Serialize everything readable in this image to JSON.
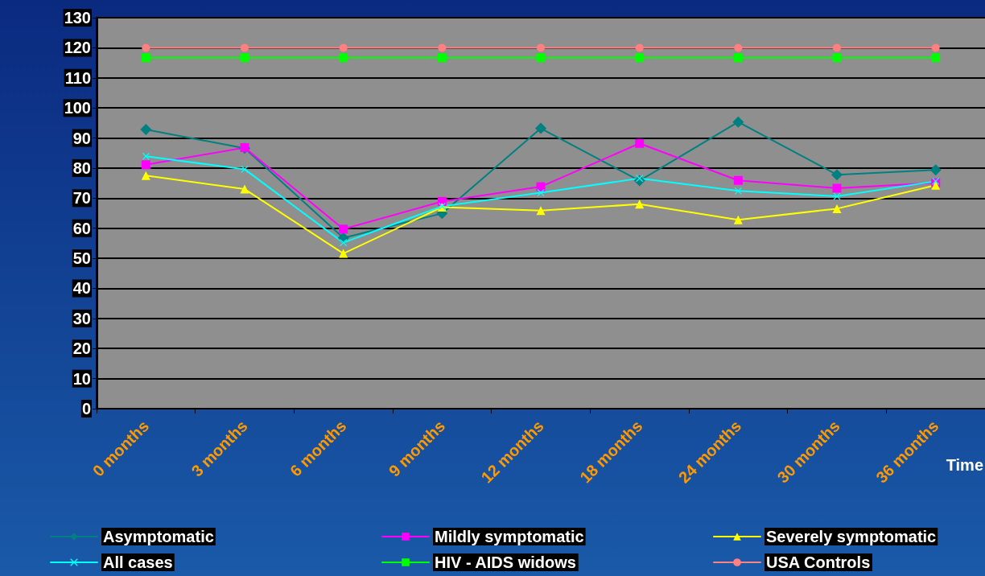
{
  "chart_data": {
    "type": "line",
    "xlabel": "Time",
    "categories": [
      "0 months",
      "3 months",
      "6 months",
      "9 months",
      "12 months",
      "18 months",
      "24 months",
      "30 months",
      "36 months"
    ],
    "series": [
      {
        "name": "Asymptomatic",
        "color": "#008080",
        "marker": "diamond",
        "values": [
          92.8,
          86.6,
          56.8,
          64.9,
          93.2,
          75.8,
          95.3,
          77.8,
          79.4
        ]
      },
      {
        "name": "Mildly symptomatic",
        "color": "#ff00ff",
        "marker": "square",
        "values": [
          81.1,
          86.8,
          59.7,
          68.9,
          73.8,
          88.2,
          75.9,
          73.3,
          75.1
        ]
      },
      {
        "name": "Severely symptomatic",
        "color": "#ffff00",
        "marker": "triangle",
        "values": [
          77.5,
          73.0,
          51.6,
          67.0,
          65.9,
          68.0,
          62.8,
          66.5,
          74.3
        ]
      },
      {
        "name": "All cases",
        "color": "#00ffff",
        "marker": "cross",
        "values": [
          83.9,
          79.6,
          55.2,
          67.3,
          71.8,
          76.6,
          72.4,
          70.6,
          75.6
        ]
      },
      {
        "name": "HIV - AIDS widows",
        "color": "#00ff00",
        "marker": "square",
        "values": [
          116.7,
          116.7,
          116.7,
          116.7,
          116.7,
          116.7,
          116.7,
          116.7,
          116.7
        ]
      },
      {
        "name": "USA Controls",
        "color": "#ff8080",
        "marker": "circle",
        "values": [
          120,
          120,
          120,
          120,
          120,
          120,
          120,
          120,
          120
        ]
      }
    ],
    "ylim": [
      0,
      130
    ],
    "yticks": [
      0,
      10,
      20,
      30,
      40,
      50,
      60,
      70,
      80,
      90,
      100,
      110,
      120,
      130
    ],
    "grid": "y",
    "legend": "bottom"
  }
}
